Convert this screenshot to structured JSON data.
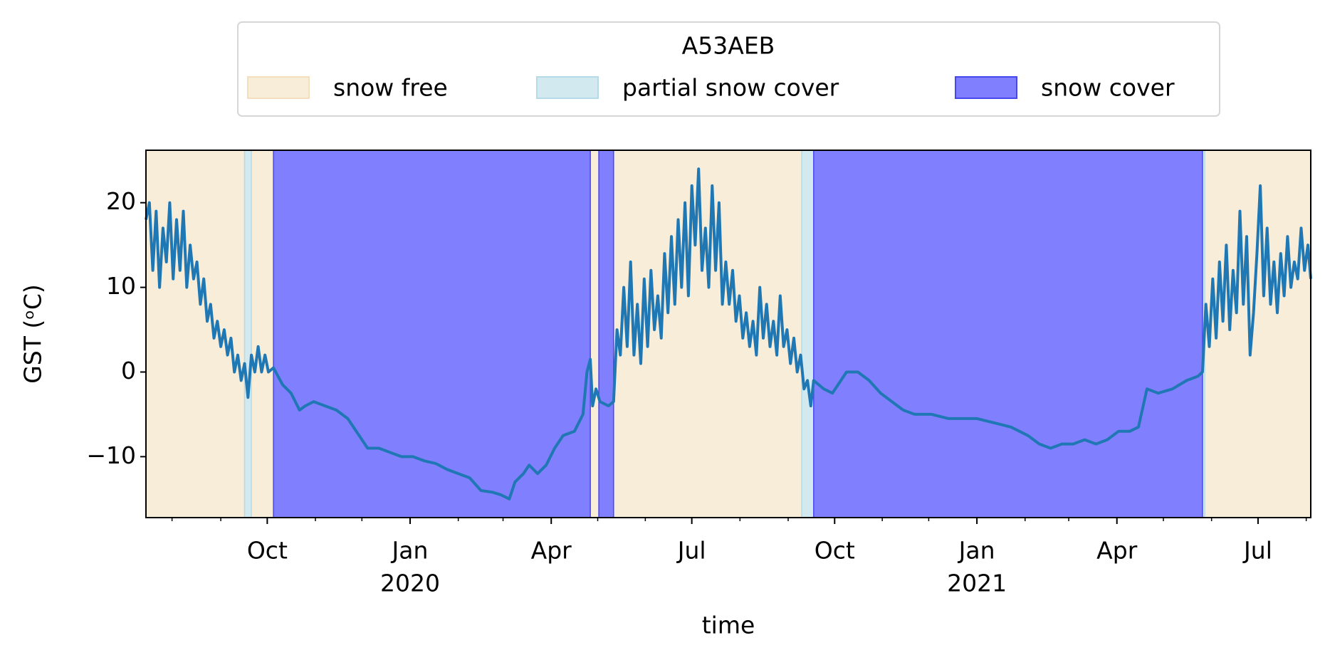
{
  "chart_data": {
    "type": "line",
    "legend_title": "A53AEB",
    "legend": "upper center",
    "xlabel": "time",
    "ylabel": "GST (ᵒC)",
    "color": "#1f77b4",
    "xlim": [
      2019.534,
      2021.589
    ],
    "ylim": [
      -17.2,
      26.2
    ],
    "yticks": [
      {
        "value": -10,
        "label": "−10"
      },
      0,
      10,
      20
    ],
    "xticks": [
      {
        "value": 2019.748,
        "label": "Oct"
      },
      {
        "value": 2020.0,
        "label": "Jan",
        "year": "2020"
      },
      {
        "value": 2020.249,
        "label": "Apr"
      },
      {
        "value": 2020.497,
        "label": "Jul"
      },
      {
        "value": 2020.749,
        "label": "Oct"
      },
      {
        "value": 2021.0,
        "label": "Jan",
        "year": "2021"
      },
      {
        "value": 2021.247,
        "label": "Apr"
      },
      {
        "value": 2021.496,
        "label": "Jul"
      }
    ],
    "xminorticks": [
      2019.58,
      2019.666,
      2019.833,
      2019.915,
      2020.085,
      2020.164,
      2020.331,
      2020.415,
      2020.582,
      2020.667,
      2020.833,
      2020.915,
      2021.085,
      2021.162,
      2021.329,
      2021.414,
      2021.581
    ],
    "spans": [
      {
        "name": "snow free",
        "color": "#f8edd9",
        "edge": "#f3dfbd",
        "ranges": [
          [
            2019.534,
            2019.708
          ],
          [
            2019.72,
            2019.759
          ],
          [
            2020.318,
            2020.333
          ],
          [
            2020.359,
            2020.691
          ],
          [
            2021.402,
            2021.589
          ]
        ]
      },
      {
        "name": "partial snow cover",
        "color": "#d3e9f0",
        "edge": "#b6dbe8",
        "ranges": [
          [
            2019.708,
            2019.72
          ],
          [
            2020.691,
            2020.712
          ],
          [
            2021.398,
            2021.402
          ]
        ]
      },
      {
        "name": "snow cover",
        "color": "#8080ff",
        "edge": "#4747f0",
        "ranges": [
          [
            2019.759,
            2020.318
          ],
          [
            2020.333,
            2020.359
          ],
          [
            2020.712,
            2021.398
          ]
        ]
      }
    ],
    "x": [
      2019.534,
      2019.54,
      2019.546,
      2019.552,
      2019.558,
      2019.564,
      2019.57,
      2019.576,
      2019.582,
      2019.588,
      2019.594,
      2019.6,
      2019.606,
      2019.612,
      2019.618,
      2019.624,
      2019.63,
      2019.636,
      2019.642,
      2019.648,
      2019.654,
      2019.66,
      2019.666,
      2019.672,
      2019.678,
      2019.684,
      2019.69,
      2019.696,
      2019.702,
      2019.708,
      2019.714,
      2019.72,
      2019.726,
      2019.732,
      2019.738,
      2019.744,
      2019.75,
      2019.759,
      2019.775,
      2019.79,
      2019.805,
      2019.815,
      2019.83,
      2019.85,
      2019.87,
      2019.89,
      2019.905,
      2019.925,
      2019.945,
      2019.965,
      2019.985,
      2020.005,
      2020.025,
      2020.045,
      2020.065,
      2020.085,
      2020.105,
      2020.125,
      2020.145,
      2020.16,
      2020.175,
      2020.185,
      2020.2,
      2020.21,
      2020.225,
      2020.24,
      2020.255,
      2020.27,
      2020.29,
      2020.305,
      2020.312,
      2020.318,
      2020.322,
      2020.328,
      2020.335,
      2020.35,
      2020.359,
      2020.365,
      2020.371,
      2020.377,
      2020.383,
      2020.389,
      2020.395,
      2020.401,
      2020.407,
      2020.413,
      2020.419,
      2020.425,
      2020.431,
      2020.437,
      2020.443,
      2020.449,
      2020.455,
      2020.461,
      2020.467,
      2020.473,
      2020.479,
      2020.485,
      2020.491,
      2020.497,
      2020.503,
      2020.509,
      2020.515,
      2020.521,
      2020.527,
      2020.533,
      2020.539,
      2020.545,
      2020.551,
      2020.557,
      2020.563,
      2020.569,
      2020.575,
      2020.581,
      2020.587,
      2020.593,
      2020.599,
      2020.605,
      2020.611,
      2020.617,
      2020.623,
      2020.629,
      2020.635,
      2020.641,
      2020.647,
      2020.653,
      2020.659,
      2020.665,
      2020.671,
      2020.677,
      2020.683,
      2020.689,
      2020.695,
      2020.701,
      2020.707,
      2020.712,
      2020.73,
      2020.745,
      2020.77,
      2020.79,
      2020.81,
      2020.83,
      2020.85,
      2020.87,
      2020.89,
      2020.92,
      2020.95,
      2020.98,
      2021.0,
      2021.03,
      2021.06,
      2021.09,
      2021.11,
      2021.13,
      2021.15,
      2021.17,
      2021.19,
      2021.21,
      2021.23,
      2021.25,
      2021.27,
      2021.285,
      2021.3,
      2021.32,
      2021.345,
      2021.37,
      2021.39,
      2021.398,
      2021.404,
      2021.41,
      2021.416,
      2021.422,
      2021.428,
      2021.434,
      2021.44,
      2021.446,
      2021.452,
      2021.458,
      2021.464,
      2021.47,
      2021.476,
      2021.482,
      2021.488,
      2021.494,
      2021.5,
      2021.506,
      2021.512,
      2021.518,
      2021.524,
      2021.53,
      2021.536,
      2021.542,
      2021.548,
      2021.554,
      2021.56,
      2021.566,
      2021.572,
      2021.578,
      2021.584,
      2021.589
    ],
    "values": [
      18,
      20,
      12,
      19,
      10,
      17,
      13,
      20,
      11,
      18,
      12,
      19,
      10,
      15,
      11,
      13,
      8,
      11,
      6,
      8,
      4,
      6,
      3,
      5,
      2,
      4,
      0,
      2,
      -1,
      1,
      -3,
      2,
      0,
      3,
      0,
      2,
      0,
      0.5,
      -1.5,
      -2.5,
      -4.5,
      -4,
      -3.5,
      -4,
      -4.5,
      -5.5,
      -7,
      -9,
      -9,
      -9.5,
      -10,
      -10,
      -10.5,
      -10.8,
      -11.5,
      -12,
      -12.5,
      -14,
      -14.2,
      -14.5,
      -15,
      -13,
      -12,
      -11,
      -12,
      -11,
      -9,
      -7.5,
      -7,
      -5,
      0,
      1.5,
      -4,
      -2,
      -3.5,
      -4,
      -3.5,
      5,
      2,
      10,
      3,
      13,
      2,
      8,
      1,
      11,
      3,
      12,
      5,
      9,
      4,
      14,
      7,
      16,
      8,
      18,
      10,
      20,
      9,
      22,
      15,
      24,
      12,
      17,
      10,
      22,
      12,
      20,
      8,
      13,
      8,
      12,
      6,
      9,
      4,
      7,
      3,
      6,
      2,
      10,
      4,
      8,
      3,
      6,
      2,
      9,
      3,
      5,
      1,
      4,
      0,
      2,
      -2,
      -1,
      -4,
      -1,
      -2,
      -2.5,
      0,
      0,
      -1,
      -2.5,
      -3.5,
      -4.5,
      -5,
      -5,
      -5.5,
      -5.5,
      -5.5,
      -6,
      -6.5,
      -7.5,
      -8.5,
      -9,
      -8.5,
      -8.5,
      -8,
      -8.5,
      -8,
      -7,
      -7,
      -6.5,
      -2,
      -2.5,
      -2,
      -1,
      -0.5,
      0,
      8,
      3,
      11,
      4,
      13,
      6,
      15,
      5,
      12,
      7,
      19,
      8,
      16,
      2,
      7,
      14,
      22,
      9,
      17,
      8,
      13,
      7,
      14,
      9,
      16,
      10,
      13,
      11,
      17,
      12,
      15,
      11
    ]
  }
}
